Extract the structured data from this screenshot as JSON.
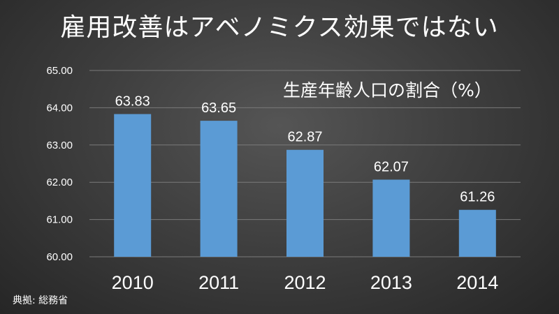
{
  "page": {
    "title": "雇用改善はアベノミクス効果ではない",
    "source_note": "典拠: 総務省"
  },
  "chart_data": {
    "type": "bar",
    "categories": [
      "2010",
      "2011",
      "2012",
      "2013",
      "2014"
    ],
    "series": [
      {
        "name": "生産年齢人口の割合（%）",
        "values": [
          63.83,
          63.65,
          62.87,
          62.07,
          61.26
        ]
      }
    ],
    "data_labels": [
      "63.83",
      "63.65",
      "62.87",
      "62.07",
      "61.26"
    ],
    "y_ticks": [
      "60.00",
      "61.00",
      "62.00",
      "63.00",
      "64.00",
      "65.00"
    ],
    "ylim": [
      60,
      65
    ],
    "grid": true,
    "colors": {
      "bar": "#5b9bd5",
      "grid": "#7a7a7a",
      "text": "#ffffff"
    }
  }
}
